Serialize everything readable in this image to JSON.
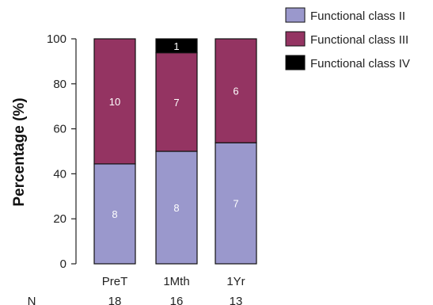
{
  "chart_data": {
    "type": "bar",
    "stacked": true,
    "categories": [
      "PreT",
      "1Mth",
      "1Yr"
    ],
    "ylabel": "Percentage (%)",
    "ylim": [
      0,
      100
    ],
    "yticks": [
      "0",
      "20",
      "40",
      "60",
      "80",
      "100"
    ],
    "n_row_label": "N",
    "n_values": [
      "18",
      "16",
      "13"
    ],
    "series": [
      {
        "name": "Functional class II",
        "color": "#9a98cc",
        "values": [
          44.4,
          50.0,
          53.8
        ],
        "labels": [
          "8",
          "8",
          "7"
        ]
      },
      {
        "name": "Functional class III",
        "color": "#943462",
        "values": [
          55.6,
          43.8,
          46.2
        ],
        "labels": [
          "10",
          "7",
          "6"
        ]
      },
      {
        "name": "Functional class IV",
        "color": "#000000",
        "values": [
          0,
          6.2,
          0
        ],
        "labels": [
          "",
          "1",
          ""
        ]
      }
    ],
    "legend_position": "top-right",
    "grid": false
  }
}
